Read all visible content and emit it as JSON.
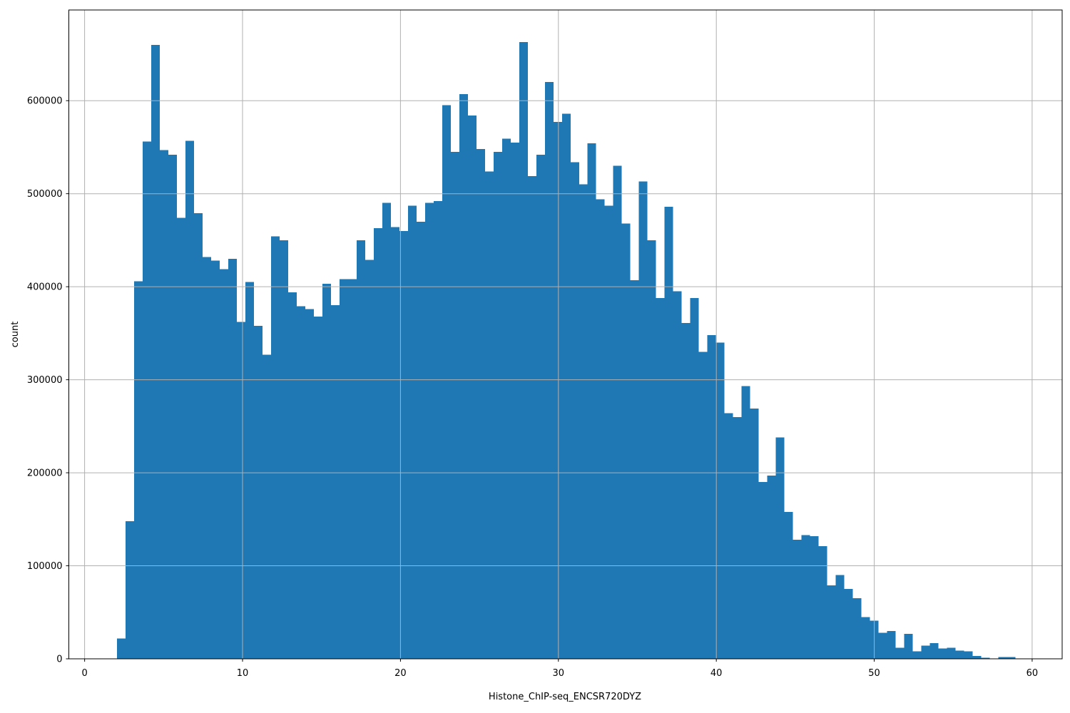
{
  "figure": {
    "xlabel": "Histone_ChIP-seq_ENCSR720DYZ",
    "ylabel": "count"
  },
  "chart_data": {
    "type": "bar",
    "subtype": "histogram",
    "title": "",
    "xlabel": "Histone_ChIP-seq_ENCSR720DYZ",
    "ylabel": "count",
    "legend_position": "none",
    "grid": true,
    "grid_above_bars": true,
    "bin_start": 2.04,
    "bin_width": 0.542,
    "xlim": [
      -1.0,
      61.9
    ],
    "ylim": [
      0,
      697500
    ],
    "x_ticks": [
      0,
      10,
      20,
      30,
      40,
      50,
      60
    ],
    "y_ticks": [
      0,
      100000,
      200000,
      300000,
      400000,
      500000,
      600000
    ],
    "bar_color": "#1f77b4",
    "grid_color": "#b0b0b0",
    "spine_color": "#000000",
    "text_color": "#000000",
    "background_color": "#ffffff",
    "values": [
      22000,
      148000,
      406000,
      556000,
      660000,
      547000,
      542000,
      474000,
      557000,
      479000,
      432000,
      428000,
      419000,
      430000,
      362000,
      405000,
      358000,
      327000,
      454000,
      450000,
      394000,
      379000,
      376000,
      368000,
      403000,
      380000,
      408000,
      408000,
      450000,
      429000,
      463000,
      490000,
      464000,
      460000,
      487000,
      470000,
      490000,
      492000,
      595000,
      545000,
      607000,
      584000,
      548000,
      524000,
      545000,
      559000,
      555000,
      663000,
      519000,
      542000,
      620000,
      577000,
      586000,
      534000,
      510000,
      554000,
      494000,
      487000,
      530000,
      468000,
      407000,
      513000,
      450000,
      388000,
      486000,
      395000,
      361000,
      388000,
      330000,
      348000,
      340000,
      264000,
      260000,
      293000,
      269000,
      190000,
      197000,
      238000,
      158000,
      128000,
      133000,
      132000,
      121000,
      79000,
      90000,
      75000,
      65000,
      45000,
      41000,
      28000,
      30000,
      12000,
      27000,
      8000,
      14000,
      17000,
      11000,
      12000,
      9000,
      8000,
      3000,
      1000,
      0,
      2000,
      2000
    ]
  }
}
